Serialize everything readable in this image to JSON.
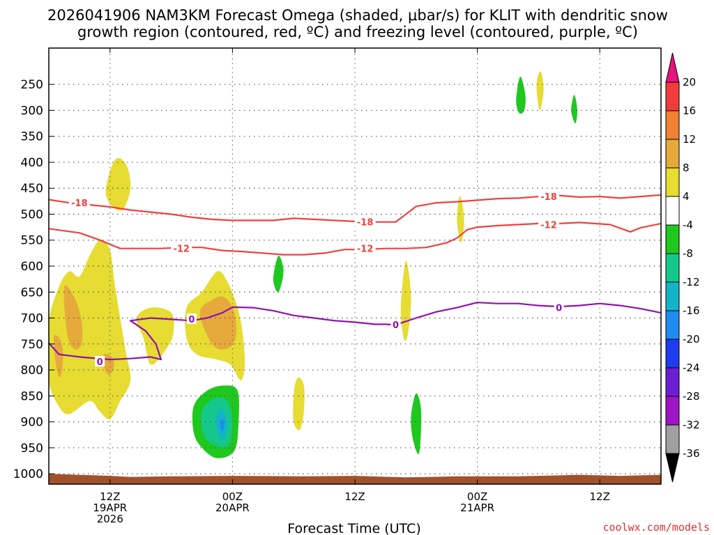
{
  "chart_data": {
    "type": "time-height cross-section",
    "title_line1": "2026041906 NAM3KM Forecast Omega (shaded, μbar/s) for KLIT with dendritic snow",
    "title_line2": "growth region (contoured, red, ºC) and freezing level (contoured, purple, ºC)",
    "xlabel": "Forecast Time (UTC)",
    "credit": "coolwx.com/models",
    "x_range_hours": [
      0,
      60
    ],
    "y_range_hpa": [
      1020,
      180
    ],
    "y_ticks": [
      250,
      300,
      350,
      400,
      450,
      500,
      550,
      600,
      650,
      700,
      750,
      800,
      850,
      900,
      950,
      1000
    ],
    "x_ticks": [
      {
        "hour": 6,
        "line1": "12Z",
        "line2": "19APR",
        "line3": "2026"
      },
      {
        "hour": 18,
        "line1": "00Z",
        "line2": "20APR",
        "line3": ""
      },
      {
        "hour": 30,
        "line1": "12Z",
        "line2": "",
        "line3": ""
      },
      {
        "hour": 42,
        "line1": "00Z",
        "line2": "21APR",
        "line3": ""
      },
      {
        "hour": 54,
        "line1": "12Z",
        "line2": "",
        "line3": ""
      }
    ],
    "colorbar": {
      "labels": [
        "20",
        "16",
        "12",
        "8",
        "4",
        "-4",
        "-8",
        "-12",
        "-16",
        "-20",
        "-24",
        "-28",
        "-32",
        "-36"
      ],
      "bins": [
        {
          "lo": 16,
          "hi": 20,
          "color": "#f03c3c"
        },
        {
          "lo": 12,
          "hi": 16,
          "color": "#f08232"
        },
        {
          "lo": 8,
          "hi": 12,
          "color": "#e6aa3c"
        },
        {
          "lo": 4,
          "hi": 8,
          "color": "#e6dc32"
        },
        {
          "lo": -4,
          "hi": 4,
          "color": "#ffffff"
        },
        {
          "lo": -8,
          "hi": -4,
          "color": "#1ec81e"
        },
        {
          "lo": -12,
          "hi": -8,
          "color": "#14c88c"
        },
        {
          "lo": -16,
          "hi": -12,
          "color": "#14b4c8"
        },
        {
          "lo": -20,
          "hi": -16,
          "color": "#1e8cf0"
        },
        {
          "lo": -24,
          "hi": -20,
          "color": "#1e3cf0"
        },
        {
          "lo": -28,
          "hi": -24,
          "color": "#6e1ed2"
        },
        {
          "lo": -32,
          "hi": -28,
          "color": "#a014c8"
        },
        {
          "lo": -36,
          "hi": -32,
          "color": "#a0a0a0"
        }
      ],
      "top_arrow_color": "#e6147d",
      "bottom_arrow_color": "#000000"
    },
    "ground_color": "#a0522d",
    "omega_features": [
      {
        "color": "#e6dc32",
        "points": [
          [
            0,
            708
          ],
          [
            1,
            640
          ],
          [
            2,
            610
          ],
          [
            3,
            620
          ],
          [
            4,
            580
          ],
          [
            5,
            550
          ],
          [
            6,
            570
          ],
          [
            6.5,
            640
          ],
          [
            7.5,
            760
          ],
          [
            8,
            820
          ],
          [
            7,
            860
          ],
          [
            6,
            895
          ],
          [
            5,
            880
          ],
          [
            4,
            860
          ],
          [
            2,
            885
          ],
          [
            1,
            870
          ],
          [
            0,
            820
          ]
        ]
      },
      {
        "color": "#e6aa3c",
        "points": [
          [
            1.5,
            640
          ],
          [
            2.5,
            660
          ],
          [
            3.2,
            705
          ],
          [
            3.2,
            750
          ],
          [
            2.5,
            760
          ],
          [
            1.8,
            730
          ]
        ]
      },
      {
        "color": "#e6aa3c",
        "points": [
          [
            0.5,
            735
          ],
          [
            1.2,
            745
          ],
          [
            1.4,
            780
          ],
          [
            1.1,
            815
          ],
          [
            0.7,
            790
          ]
        ]
      },
      {
        "color": "#e6aa3c",
        "points": [
          [
            5.4,
            770
          ],
          [
            6.2,
            775
          ],
          [
            6.4,
            795
          ],
          [
            5.9,
            810
          ],
          [
            5.4,
            795
          ]
        ]
      },
      {
        "color": "#e6dc32",
        "points": [
          [
            8.6,
            700
          ],
          [
            10,
            680
          ],
          [
            12,
            690
          ],
          [
            12.2,
            730
          ],
          [
            11.5,
            760
          ],
          [
            10,
            790
          ],
          [
            9.3,
            740
          ]
        ]
      },
      {
        "color": "#e6dc32",
        "points": [
          [
            5.6,
            450
          ],
          [
            6.5,
            395
          ],
          [
            7.6,
            405
          ],
          [
            8,
            450
          ],
          [
            7.2,
            492
          ],
          [
            6,
            480
          ]
        ]
      },
      {
        "color": "#e6dc32",
        "points": [
          [
            13.5,
            680
          ],
          [
            15,
            650
          ],
          [
            16.5,
            610
          ],
          [
            17.5,
            630
          ],
          [
            18.5,
            680
          ],
          [
            19,
            730
          ],
          [
            19.2,
            790
          ],
          [
            18.8,
            820
          ],
          [
            17.8,
            790
          ],
          [
            16.5,
            780
          ],
          [
            14.5,
            770
          ],
          [
            13.5,
            740
          ]
        ]
      },
      {
        "color": "#e6aa3c",
        "points": [
          [
            14.8,
            690
          ],
          [
            16,
            665
          ],
          [
            17.2,
            660
          ],
          [
            18.2,
            690
          ],
          [
            18.3,
            740
          ],
          [
            17.3,
            760
          ],
          [
            16,
            750
          ]
        ]
      },
      {
        "color": "#e6dc32",
        "points": [
          [
            24,
            845
          ],
          [
            24.4,
            815
          ],
          [
            25,
            830
          ],
          [
            25,
            880
          ],
          [
            24.6,
            915
          ],
          [
            24,
            900
          ]
        ]
      },
      {
        "color": "#1ec81e",
        "points": [
          [
            14.2,
            870
          ],
          [
            15.5,
            840
          ],
          [
            17.2,
            830
          ],
          [
            18.5,
            840
          ],
          [
            18.6,
            900
          ],
          [
            18.2,
            955
          ],
          [
            16.5,
            970
          ],
          [
            15,
            950
          ],
          [
            14.2,
            920
          ]
        ]
      },
      {
        "color": "#14c88c",
        "points": [
          [
            15,
            880
          ],
          [
            16.2,
            855
          ],
          [
            17.5,
            860
          ],
          [
            18,
            900
          ],
          [
            17.6,
            945
          ],
          [
            16.3,
            945
          ],
          [
            15.2,
            925
          ]
        ]
      },
      {
        "color": "#14b4c8",
        "points": [
          [
            16.4,
            890
          ],
          [
            17,
            875
          ],
          [
            17.5,
            905
          ],
          [
            17.1,
            935
          ],
          [
            16.6,
            925
          ]
        ]
      },
      {
        "color": "#1e8cf0",
        "points": [
          [
            16.85,
            897
          ],
          [
            17.15,
            897
          ],
          [
            17.15,
            915
          ],
          [
            16.85,
            915
          ]
        ]
      },
      {
        "color": "#1ec81e",
        "points": [
          [
            22,
            625
          ],
          [
            22.5,
            580
          ],
          [
            23,
            610
          ],
          [
            22.5,
            650
          ]
        ]
      },
      {
        "color": "#e6dc32",
        "points": [
          [
            34.5,
            680
          ],
          [
            35,
            590
          ],
          [
            35.5,
            660
          ],
          [
            35.2,
            730
          ],
          [
            34.8,
            740
          ]
        ]
      },
      {
        "color": "#1ec81e",
        "points": [
          [
            35.5,
            890
          ],
          [
            36,
            845
          ],
          [
            36.5,
            880
          ],
          [
            36.3,
            960
          ],
          [
            35.7,
            935
          ]
        ]
      },
      {
        "color": "#e6dc32",
        "points": [
          [
            40,
            510
          ],
          [
            40.3,
            465
          ],
          [
            40.7,
            510
          ],
          [
            40.4,
            555
          ]
        ]
      },
      {
        "color": "#1ec81e",
        "points": [
          [
            45.8,
            280
          ],
          [
            46.2,
            235
          ],
          [
            46.7,
            270
          ],
          [
            46.6,
            300
          ],
          [
            46.1,
            305
          ]
        ]
      },
      {
        "color": "#e6dc32",
        "points": [
          [
            47.8,
            250
          ],
          [
            48.2,
            225
          ],
          [
            48.5,
            260
          ],
          [
            48.1,
            300
          ]
        ]
      },
      {
        "color": "#1ec81e",
        "points": [
          [
            51.2,
            300
          ],
          [
            51.5,
            270
          ],
          [
            51.8,
            300
          ],
          [
            51.6,
            325
          ]
        ]
      }
    ],
    "contours": [
      {
        "label": "-18",
        "color": "#f04040",
        "points": [
          [
            0,
            472
          ],
          [
            2,
            478
          ],
          [
            6,
            486
          ],
          [
            8,
            492
          ],
          [
            12,
            500
          ],
          [
            14,
            506
          ],
          [
            16,
            510
          ],
          [
            18,
            512
          ],
          [
            20,
            512
          ],
          [
            22,
            512
          ],
          [
            24,
            508
          ],
          [
            26,
            510
          ],
          [
            28,
            512
          ],
          [
            30,
            514
          ],
          [
            32,
            515
          ],
          [
            34,
            515
          ],
          [
            35,
            500
          ],
          [
            36,
            485
          ],
          [
            38,
            478
          ],
          [
            40,
            476
          ],
          [
            42,
            473
          ],
          [
            44,
            470
          ],
          [
            46,
            469
          ],
          [
            48,
            466
          ],
          [
            50,
            464
          ],
          [
            52,
            467
          ],
          [
            54,
            466
          ],
          [
            56,
            469
          ],
          [
            58,
            466
          ],
          [
            60,
            463
          ]
        ],
        "label_at": [
          [
            3,
            478
          ],
          [
            31,
            515
          ],
          [
            49,
            466
          ]
        ]
      },
      {
        "label": "-12",
        "color": "#f04040",
        "points": [
          [
            0,
            528
          ],
          [
            3,
            536
          ],
          [
            5,
            550
          ],
          [
            7,
            566
          ],
          [
            9,
            566
          ],
          [
            11,
            566
          ],
          [
            13,
            564
          ],
          [
            15,
            564
          ],
          [
            17,
            570
          ],
          [
            19,
            572
          ],
          [
            21,
            575
          ],
          [
            23,
            578
          ],
          [
            25,
            578
          ],
          [
            27,
            575
          ],
          [
            29,
            568
          ],
          [
            31,
            568
          ],
          [
            33,
            566
          ],
          [
            35,
            566
          ],
          [
            37,
            564
          ],
          [
            39,
            555
          ],
          [
            40,
            546
          ],
          [
            41,
            530
          ],
          [
            42,
            525
          ],
          [
            44,
            522
          ],
          [
            46,
            520
          ],
          [
            48,
            518
          ],
          [
            50,
            518
          ],
          [
            52,
            516
          ],
          [
            55,
            520
          ],
          [
            57,
            534
          ],
          [
            58,
            526
          ],
          [
            60,
            518
          ]
        ],
        "label_at": [
          [
            13,
            566
          ],
          [
            31,
            566
          ],
          [
            49,
            520
          ]
        ]
      },
      {
        "label": "0",
        "color": "#9010b0",
        "points": [
          [
            0,
            748
          ],
          [
            1,
            770
          ],
          [
            3,
            775
          ],
          [
            6,
            780
          ],
          [
            8,
            778
          ],
          [
            10,
            775
          ],
          [
            11,
            780
          ],
          [
            10.5,
            750
          ],
          [
            9.5,
            725
          ],
          [
            8,
            705
          ],
          [
            10,
            700
          ],
          [
            14,
            705
          ],
          [
            15.5,
            700
          ],
          [
            17,
            690
          ],
          [
            18,
            679
          ],
          [
            20,
            680
          ],
          [
            22,
            686
          ],
          [
            24,
            695
          ],
          [
            26,
            700
          ],
          [
            28,
            705
          ],
          [
            30,
            708
          ],
          [
            32,
            712
          ],
          [
            33,
            712
          ],
          [
            34,
            713
          ],
          [
            36,
            700
          ],
          [
            38,
            688
          ],
          [
            40,
            680
          ],
          [
            42,
            670
          ],
          [
            44,
            672
          ],
          [
            46,
            672
          ],
          [
            48,
            676
          ],
          [
            50,
            678
          ],
          [
            52,
            676
          ],
          [
            54,
            672
          ],
          [
            56,
            676
          ],
          [
            58,
            682
          ],
          [
            60,
            690
          ]
        ],
        "label_at": [
          [
            5,
            784
          ],
          [
            14,
            702
          ],
          [
            34,
            713
          ],
          [
            50,
            680
          ]
        ]
      }
    ]
  }
}
